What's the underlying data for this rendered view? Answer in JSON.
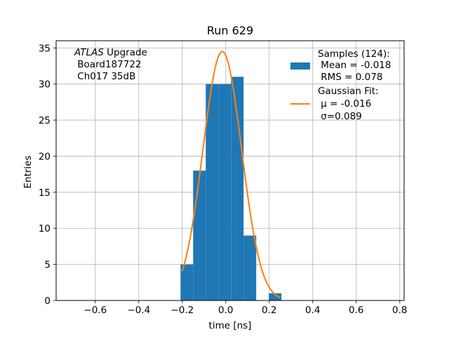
{
  "chart_data": {
    "type": "bar",
    "title": "Run 629",
    "xlabel": "time [ns]",
    "ylabel": "Entries",
    "xlim": [
      -0.78,
      0.82
    ],
    "ylim": [
      0,
      36
    ],
    "xticks": [
      -0.6,
      -0.4,
      -0.2,
      0.0,
      0.2,
      0.4,
      0.6,
      0.8
    ],
    "xtick_labels": [
      "−0.6",
      "−0.4",
      "−0.2",
      "0.0",
      "0.2",
      "0.4",
      "0.6",
      "0.8"
    ],
    "yticks": [
      0,
      5,
      10,
      15,
      20,
      25,
      30,
      35
    ],
    "ytick_labels": [
      "0",
      "5",
      "10",
      "15",
      "20",
      "25",
      "30",
      "35"
    ],
    "grid": true,
    "annotation": {
      "line1_italic": "ATLAS",
      "line1_rest": " Upgrade",
      "line2": " Board187722",
      "line3": " Ch017 35dB"
    },
    "histogram": {
      "name": "Samples (124):",
      "color": "#1f77b4",
      "bins": [
        {
          "x0": -0.208,
          "x1": -0.15,
          "count": 5
        },
        {
          "x0": -0.15,
          "x1": -0.092,
          "count": 18
        },
        {
          "x0": -0.092,
          "x1": -0.034,
          "count": 30
        },
        {
          "x0": -0.034,
          "x1": 0.024,
          "count": 30
        },
        {
          "x0": 0.024,
          "x1": 0.082,
          "count": 31
        },
        {
          "x0": 0.082,
          "x1": 0.14,
          "count": 9
        },
        {
          "x0": 0.14,
          "x1": 0.198,
          "count": 0
        },
        {
          "x0": 0.198,
          "x1": 0.256,
          "count": 1
        }
      ],
      "stats_lines": [
        " Mean = -0.018",
        " RMS = 0.078"
      ]
    },
    "fit": {
      "name": "Gaussian Fit:",
      "color": "#ff7f0e",
      "mu": -0.016,
      "sigma": 0.089,
      "amplitude": 34.5,
      "x_range": [
        -0.2,
        0.25
      ],
      "mu_label": " μ = -0.016",
      "sigma_label": " σ=0.089"
    },
    "legend_position": "upper-right"
  }
}
